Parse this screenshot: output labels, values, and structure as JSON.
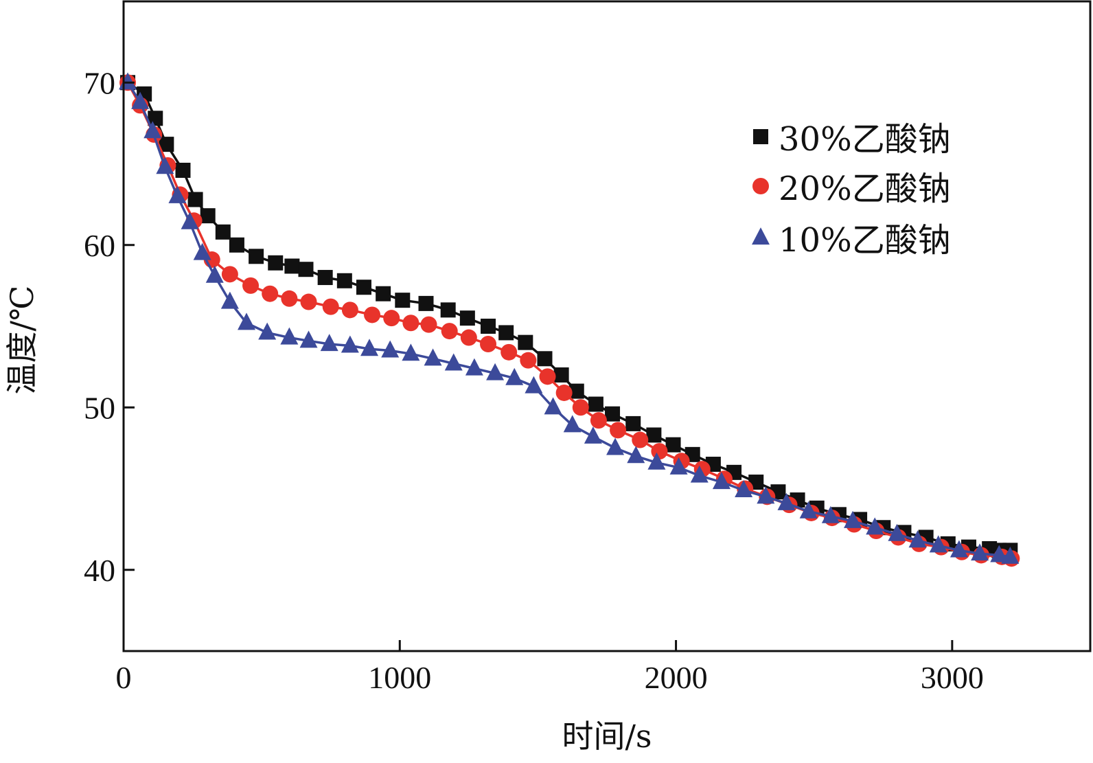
{
  "chart_data": {
    "type": "line",
    "title": "",
    "xlabel": "时间/s",
    "ylabel": "温度/℃",
    "xlim": [
      0,
      3500
    ],
    "ylim": [
      35,
      75
    ],
    "xticks": [
      0,
      1000,
      2000,
      3000
    ],
    "yticks": [
      40,
      50,
      60,
      70
    ],
    "xtick_labels": [
      "0",
      "1000",
      "2000",
      "3000"
    ],
    "ytick_labels": [
      "40",
      "50",
      "60",
      "70"
    ],
    "grid": false,
    "legend_position": "top-right",
    "series": [
      {
        "name": "30%乙酸钠",
        "marker": "square",
        "color": "#111111",
        "x": [
          15,
          75,
          115,
          155,
          215,
          260,
          305,
          360,
          410,
          480,
          550,
          610,
          660,
          730,
          800,
          870,
          940,
          1010,
          1095,
          1175,
          1245,
          1320,
          1385,
          1455,
          1525,
          1585,
          1640,
          1710,
          1770,
          1845,
          1920,
          1990,
          2060,
          2135,
          2210,
          2290,
          2370,
          2440,
          2510,
          2590,
          2665,
          2750,
          2825,
          2905,
          2985,
          3060,
          3135,
          3170,
          3210
        ],
        "y": [
          70.0,
          69.3,
          67.8,
          66.2,
          64.6,
          62.8,
          61.8,
          60.8,
          60.0,
          59.3,
          58.9,
          58.7,
          58.5,
          58.0,
          57.8,
          57.4,
          57.0,
          56.6,
          56.4,
          56.0,
          55.5,
          55.0,
          54.6,
          54.0,
          53.0,
          52.0,
          51.0,
          50.2,
          49.6,
          49.0,
          48.3,
          47.7,
          47.1,
          46.5,
          46.0,
          45.4,
          44.8,
          44.3,
          43.8,
          43.4,
          43.1,
          42.6,
          42.3,
          42.0,
          41.6,
          41.4,
          41.3,
          41.2,
          41.2
        ]
      },
      {
        "name": "20%乙酸钠",
        "marker": "circle",
        "color": "#e8332b",
        "x": [
          15,
          60,
          110,
          160,
          205,
          255,
          320,
          385,
          460,
          530,
          600,
          670,
          750,
          820,
          900,
          970,
          1040,
          1105,
          1180,
          1250,
          1320,
          1395,
          1465,
          1535,
          1595,
          1655,
          1720,
          1790,
          1870,
          1940,
          2020,
          2095,
          2175,
          2250,
          2330,
          2410,
          2490,
          2565,
          2645,
          2725,
          2805,
          2880,
          2960,
          3035,
          3105,
          3180,
          3215
        ],
        "y": [
          70.0,
          68.6,
          66.8,
          64.9,
          63.1,
          61.5,
          59.1,
          58.2,
          57.5,
          57.0,
          56.7,
          56.5,
          56.2,
          56.0,
          55.7,
          55.5,
          55.2,
          55.1,
          54.7,
          54.3,
          53.9,
          53.4,
          52.9,
          51.9,
          50.9,
          50.0,
          49.2,
          48.6,
          48.0,
          47.3,
          46.7,
          46.2,
          45.6,
          45.0,
          44.5,
          44.0,
          43.5,
          43.2,
          42.8,
          42.4,
          42.0,
          41.6,
          41.4,
          41.1,
          40.9,
          40.8,
          40.7
        ]
      },
      {
        "name": "10%乙酸钠",
        "marker": "triangle",
        "color": "#3c4a9a",
        "x": [
          15,
          60,
          105,
          150,
          195,
          240,
          285,
          330,
          385,
          445,
          520,
          600,
          670,
          745,
          820,
          890,
          965,
          1040,
          1120,
          1195,
          1270,
          1345,
          1415,
          1485,
          1555,
          1625,
          1700,
          1780,
          1855,
          1930,
          2010,
          2085,
          2165,
          2245,
          2325,
          2400,
          2480,
          2560,
          2640,
          2720,
          2800,
          2875,
          2950,
          3025,
          3100,
          3170,
          3210
        ],
        "y": [
          70.0,
          68.8,
          67.0,
          64.8,
          63.0,
          61.4,
          59.5,
          58.1,
          56.5,
          55.2,
          54.6,
          54.3,
          54.1,
          53.9,
          53.8,
          53.6,
          53.5,
          53.3,
          53.0,
          52.7,
          52.4,
          52.1,
          51.8,
          51.3,
          50.0,
          48.9,
          48.2,
          47.5,
          47.0,
          46.6,
          46.3,
          45.8,
          45.4,
          44.9,
          44.5,
          44.1,
          43.6,
          43.3,
          43.0,
          42.6,
          42.2,
          41.8,
          41.5,
          41.2,
          41.0,
          40.9,
          40.8
        ]
      }
    ]
  }
}
